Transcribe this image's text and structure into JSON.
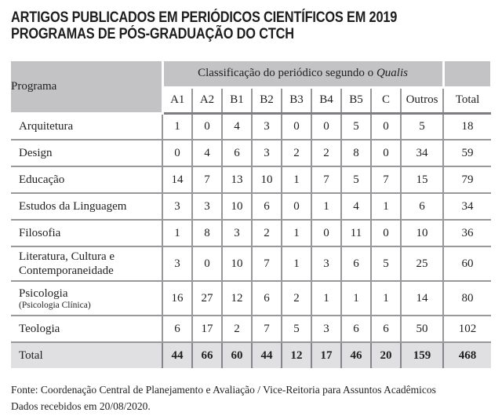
{
  "title": {
    "line1": "ARTIGOS PUBLICADOS EM PERIÓDICOS CIENTÍFICOS EM 2019",
    "line2": "PROGRAMAS DE PÓS-GRADUAÇÃO DO CTCH"
  },
  "table": {
    "program_header": "Programa",
    "qualis_header_prefix": "Classificação do periódico segundo o ",
    "qualis_header_italic": "Qualis",
    "columns": [
      "A1",
      "A2",
      "B1",
      "B2",
      "B3",
      "B4",
      "B5",
      "C",
      "Outros"
    ],
    "total_header": "Total",
    "rows": [
      {
        "program": "Arquitetura",
        "values": [
          1,
          0,
          4,
          3,
          0,
          0,
          5,
          0,
          5
        ],
        "total": 18
      },
      {
        "program": "Design",
        "values": [
          0,
          4,
          6,
          3,
          2,
          2,
          8,
          0,
          34
        ],
        "total": 59
      },
      {
        "program": "Educação",
        "values": [
          14,
          7,
          13,
          10,
          1,
          7,
          5,
          7,
          15
        ],
        "total": 79
      },
      {
        "program": "Estudos da Linguagem",
        "values": [
          3,
          3,
          10,
          6,
          0,
          1,
          4,
          1,
          6
        ],
        "total": 34
      },
      {
        "program": "Filosofia",
        "values": [
          1,
          8,
          3,
          2,
          1,
          0,
          11,
          0,
          10
        ],
        "total": 36
      },
      {
        "program": "Literatura, Cultura e Contemporaneidade",
        "values": [
          3,
          0,
          10,
          7,
          1,
          3,
          6,
          5,
          25
        ],
        "total": 60
      },
      {
        "program": "Psicologia",
        "subtitle": "(Psicologia Clínica)",
        "values": [
          16,
          27,
          12,
          6,
          2,
          1,
          1,
          1,
          14
        ],
        "total": 80
      },
      {
        "program": "Teologia",
        "values": [
          6,
          17,
          2,
          7,
          5,
          3,
          6,
          6,
          50
        ],
        "total": 102
      }
    ],
    "totals": {
      "label": "Total",
      "values": [
        44,
        66,
        60,
        44,
        12,
        17,
        46,
        20,
        159
      ],
      "total": 468
    }
  },
  "footer": {
    "line1": "Fonte: Coordenação Central de Planejamento e Avaliação / Vice-Reitoria para Assuntos Acadêmicos",
    "line2": "Dados recebidos em 20/08/2020."
  },
  "colors": {
    "header_fill": "#c3c3c5",
    "totals_fill": "#e0e0e2",
    "grid_line": "#98989b",
    "header_separator": "#7e7e82",
    "text": "#1f1f1f"
  }
}
